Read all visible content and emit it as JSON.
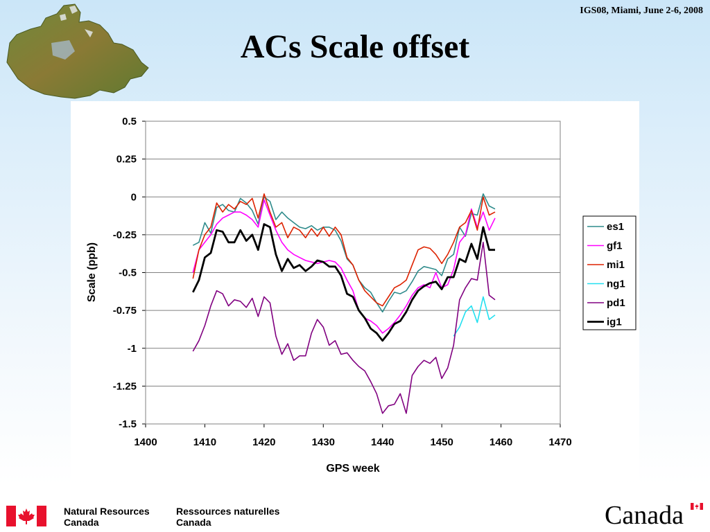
{
  "header": {
    "conference": "IGS08, Miami, June 2-6, 2008",
    "title": "ACs Scale offset"
  },
  "footer": {
    "en_line1": "Natural Resources",
    "en_line2": "Canada",
    "fr_line1": "Ressources naturelles",
    "fr_line2": "Canada",
    "wordmark": "Canada"
  },
  "chart_data": {
    "type": "line",
    "title": "",
    "xlabel": "GPS week",
    "ylabel": "Scale (ppb)",
    "xlim": [
      1400,
      1470
    ],
    "ylim": [
      -1.5,
      0.5
    ],
    "xticks": [
      1400,
      1410,
      1420,
      1430,
      1440,
      1450,
      1460,
      1470
    ],
    "xtick_labels": [
      "1400",
      "1410",
      "1420",
      "1430",
      "1440",
      "1450",
      "1460",
      "1470"
    ],
    "yticks": [
      0.5,
      0.25,
      0,
      -0.25,
      -0.5,
      -0.75,
      -1,
      -1.25,
      -1.5
    ],
    "ytick_labels": [
      "0.5",
      "0.25",
      "0",
      "-0.25",
      "-0.5",
      "-0.75",
      "-1",
      "-1.25",
      "-1.5"
    ],
    "grid": "horizontal",
    "legend_position": "right",
    "series": [
      {
        "name": "es1",
        "color": "#2e8b8b",
        "width": 1.6,
        "x": [
          1408,
          1409,
          1410,
          1411,
          1412,
          1413,
          1414,
          1415,
          1416,
          1417,
          1418,
          1419,
          1420,
          1421,
          1422,
          1423,
          1424,
          1425,
          1426,
          1427,
          1428,
          1429,
          1430,
          1431,
          1432,
          1433,
          1434,
          1435,
          1436,
          1437,
          1438,
          1439,
          1440,
          1441,
          1442,
          1443,
          1444,
          1445,
          1446,
          1447,
          1448,
          1449,
          1450,
          1451,
          1452,
          1453,
          1454,
          1455,
          1456,
          1457,
          1458,
          1459
        ],
        "y": [
          -0.32,
          -0.3,
          -0.17,
          -0.24,
          -0.07,
          -0.05,
          -0.09,
          -0.1,
          -0.01,
          -0.04,
          -0.09,
          -0.18,
          0.0,
          -0.03,
          -0.15,
          -0.1,
          -0.14,
          -0.17,
          -0.2,
          -0.21,
          -0.19,
          -0.22,
          -0.2,
          -0.2,
          -0.22,
          -0.29,
          -0.41,
          -0.45,
          -0.55,
          -0.6,
          -0.63,
          -0.7,
          -0.76,
          -0.69,
          -0.63,
          -0.64,
          -0.62,
          -0.56,
          -0.49,
          -0.46,
          -0.47,
          -0.48,
          -0.52,
          -0.41,
          -0.38,
          -0.2,
          -0.26,
          -0.11,
          -0.12,
          0.02,
          -0.06,
          -0.08
        ]
      },
      {
        "name": "gf1",
        "color": "#ff00ff",
        "width": 1.6,
        "x": [
          1408,
          1409,
          1410,
          1411,
          1412,
          1413,
          1414,
          1415,
          1416,
          1417,
          1418,
          1419,
          1420,
          1421,
          1422,
          1423,
          1424,
          1425,
          1426,
          1427,
          1428,
          1429,
          1430,
          1431,
          1432,
          1433,
          1434,
          1435,
          1436,
          1437,
          1438,
          1439,
          1440,
          1441,
          1442,
          1443,
          1444,
          1445,
          1446,
          1447,
          1448,
          1449,
          1450,
          1451,
          1452,
          1453,
          1454,
          1455,
          1456,
          1457,
          1458,
          1459
        ],
        "y": [
          -0.5,
          -0.35,
          -0.3,
          -0.25,
          -0.18,
          -0.14,
          -0.12,
          -0.1,
          -0.1,
          -0.12,
          -0.15,
          -0.2,
          -0.02,
          -0.12,
          -0.22,
          -0.3,
          -0.35,
          -0.38,
          -0.4,
          -0.42,
          -0.43,
          -0.44,
          -0.43,
          -0.42,
          -0.43,
          -0.47,
          -0.55,
          -0.62,
          -0.75,
          -0.8,
          -0.82,
          -0.85,
          -0.9,
          -0.87,
          -0.83,
          -0.78,
          -0.72,
          -0.65,
          -0.6,
          -0.58,
          -0.6,
          -0.5,
          -0.6,
          -0.58,
          -0.48,
          -0.3,
          -0.25,
          -0.08,
          -0.2,
          -0.1,
          -0.22,
          -0.14
        ]
      },
      {
        "name": "mi1",
        "color": "#dd2200",
        "width": 1.6,
        "x": [
          1408,
          1409,
          1410,
          1411,
          1412,
          1413,
          1414,
          1415,
          1416,
          1417,
          1418,
          1419,
          1420,
          1421,
          1422,
          1423,
          1424,
          1425,
          1426,
          1427,
          1428,
          1429,
          1430,
          1431,
          1432,
          1433,
          1434,
          1435,
          1436,
          1437,
          1438,
          1439,
          1440,
          1441,
          1442,
          1443,
          1444,
          1445,
          1446,
          1447,
          1448,
          1449,
          1450,
          1451,
          1452,
          1453,
          1454,
          1455,
          1456,
          1457,
          1458,
          1459
        ],
        "y": [
          -0.54,
          -0.35,
          -0.25,
          -0.2,
          -0.04,
          -0.1,
          -0.05,
          -0.08,
          -0.03,
          -0.05,
          -0.01,
          -0.14,
          0.02,
          -0.1,
          -0.2,
          -0.17,
          -0.27,
          -0.2,
          -0.22,
          -0.27,
          -0.21,
          -0.26,
          -0.2,
          -0.26,
          -0.2,
          -0.25,
          -0.4,
          -0.45,
          -0.55,
          -0.62,
          -0.66,
          -0.7,
          -0.72,
          -0.66,
          -0.6,
          -0.58,
          -0.55,
          -0.45,
          -0.35,
          -0.33,
          -0.34,
          -0.38,
          -0.44,
          -0.38,
          -0.3,
          -0.2,
          -0.17,
          -0.09,
          -0.22,
          0.0,
          -0.12,
          -0.1
        ]
      },
      {
        "name": "ng1",
        "color": "#22e0f0",
        "width": 1.6,
        "x": [
          1452,
          1453,
          1454,
          1455,
          1456,
          1457,
          1458,
          1459
        ],
        "y": [
          -0.92,
          -0.86,
          -0.76,
          -0.72,
          -0.83,
          -0.66,
          -0.81,
          -0.78
        ]
      },
      {
        "name": "pd1",
        "color": "#800080",
        "width": 1.6,
        "x": [
          1408,
          1409,
          1410,
          1411,
          1412,
          1413,
          1414,
          1415,
          1416,
          1417,
          1418,
          1419,
          1420,
          1421,
          1422,
          1423,
          1424,
          1425,
          1426,
          1427,
          1428,
          1429,
          1430,
          1431,
          1432,
          1433,
          1434,
          1435,
          1436,
          1437,
          1438,
          1439,
          1440,
          1441,
          1442,
          1443,
          1444,
          1445,
          1446,
          1447,
          1448,
          1449,
          1450,
          1451,
          1452,
          1453,
          1454,
          1455,
          1456,
          1457,
          1458,
          1459
        ],
        "y": [
          -1.02,
          -0.95,
          -0.85,
          -0.72,
          -0.62,
          -0.64,
          -0.72,
          -0.68,
          -0.69,
          -0.73,
          -0.67,
          -0.79,
          -0.66,
          -0.7,
          -0.92,
          -1.04,
          -0.97,
          -1.08,
          -1.05,
          -1.05,
          -0.9,
          -0.81,
          -0.86,
          -0.98,
          -0.95,
          -1.04,
          -1.03,
          -1.08,
          -1.12,
          -1.15,
          -1.22,
          -1.3,
          -1.43,
          -1.38,
          -1.37,
          -1.3,
          -1.43,
          -1.18,
          -1.12,
          -1.08,
          -1.1,
          -1.06,
          -1.2,
          -1.13,
          -0.98,
          -0.68,
          -0.6,
          -0.54,
          -0.55,
          -0.3,
          -0.65,
          -0.68
        ]
      },
      {
        "name": "ig1",
        "color": "#000000",
        "width": 2.8,
        "x": [
          1408,
          1409,
          1410,
          1411,
          1412,
          1413,
          1414,
          1415,
          1416,
          1417,
          1418,
          1419,
          1420,
          1421,
          1422,
          1423,
          1424,
          1425,
          1426,
          1427,
          1428,
          1429,
          1430,
          1431,
          1432,
          1433,
          1434,
          1435,
          1436,
          1437,
          1438,
          1439,
          1440,
          1441,
          1442,
          1443,
          1444,
          1445,
          1446,
          1447,
          1448,
          1449,
          1450,
          1451,
          1452,
          1453,
          1454,
          1455,
          1456,
          1457,
          1458,
          1459
        ],
        "y": [
          -0.63,
          -0.55,
          -0.4,
          -0.37,
          -0.22,
          -0.23,
          -0.3,
          -0.3,
          -0.22,
          -0.29,
          -0.25,
          -0.35,
          -0.18,
          -0.2,
          -0.38,
          -0.49,
          -0.41,
          -0.47,
          -0.45,
          -0.49,
          -0.46,
          -0.42,
          -0.43,
          -0.46,
          -0.46,
          -0.52,
          -0.64,
          -0.66,
          -0.75,
          -0.8,
          -0.87,
          -0.9,
          -0.95,
          -0.9,
          -0.84,
          -0.82,
          -0.76,
          -0.68,
          -0.62,
          -0.59,
          -0.57,
          -0.56,
          -0.61,
          -0.53,
          -0.53,
          -0.41,
          -0.43,
          -0.31,
          -0.41,
          -0.2,
          -0.35,
          -0.35
        ]
      }
    ]
  }
}
